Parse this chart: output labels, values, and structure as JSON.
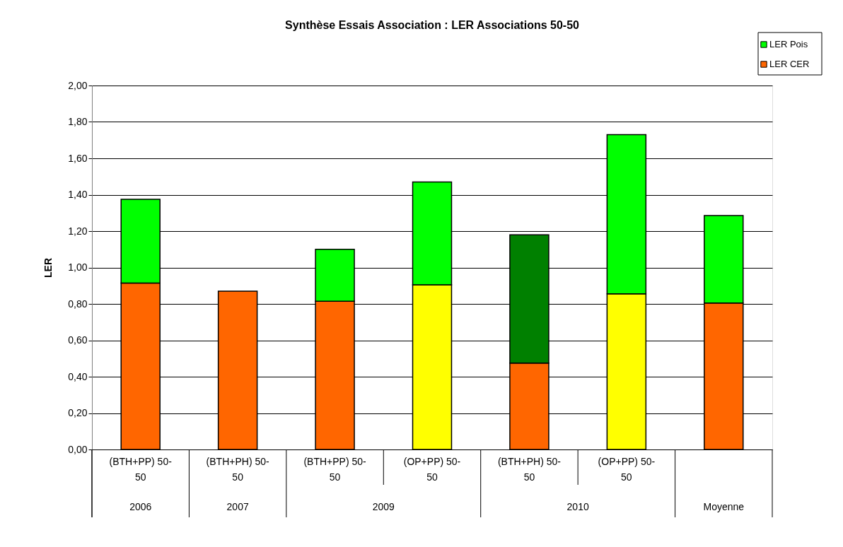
{
  "chart_data": {
    "type": "bar",
    "stacked": true,
    "title": "Synthèse Essais Association : LER Associations 50-50",
    "ylabel": "LER",
    "categories": [
      "(BTH+PP) 50-50",
      "(BTH+PH) 50-50",
      "(BTH+PP) 50-50",
      "(OP+PP) 50-50",
      "(BTH+PH) 50-50",
      "(OP+PP) 50-50",
      null
    ],
    "annotations": [
      "2006",
      "2007",
      "2009",
      "2010",
      "Moyenne"
    ],
    "series": [
      {
        "name": "LER CER",
        "color": "#ff6600",
        "colors": [
          "#ff6600",
          "#ff6600",
          "#ff6600",
          "#ffff00",
          "#ff6600",
          "#ffff00",
          "#ff6600"
        ],
        "values": [
          0.915,
          0.87,
          0.815,
          0.905,
          0.475,
          0.855,
          0.805
        ]
      },
      {
        "name": "LER Pois",
        "color": "#00ff00",
        "colors": [
          "#00ff00",
          "#00ff00",
          "#00ff00",
          "#00ff00",
          "#008000",
          "#00ff00",
          "#00ff00"
        ],
        "values": [
          0.46,
          null,
          0.285,
          0.565,
          0.705,
          0.875,
          0.48
        ]
      }
    ],
    "ylim": [
      0,
      2
    ],
    "yticks": [
      {
        "value": 0,
        "label": "0,00"
      },
      {
        "value": 0.2,
        "label": "0,20"
      },
      {
        "value": 0.4,
        "label": "0,40"
      },
      {
        "value": 0.6,
        "label": "0,60"
      },
      {
        "value": 0.8,
        "label": "0,80"
      },
      {
        "value": 1,
        "label": "1,00"
      },
      {
        "value": 1.2,
        "label": "1,20"
      },
      {
        "value": 1.4,
        "label": "1,40"
      },
      {
        "value": 1.6,
        "label": "1,60"
      },
      {
        "value": 1.8,
        "label": "1,80"
      },
      {
        "value": 2,
        "label": "2,00"
      }
    ],
    "grid": "y",
    "legend": "top right"
  }
}
